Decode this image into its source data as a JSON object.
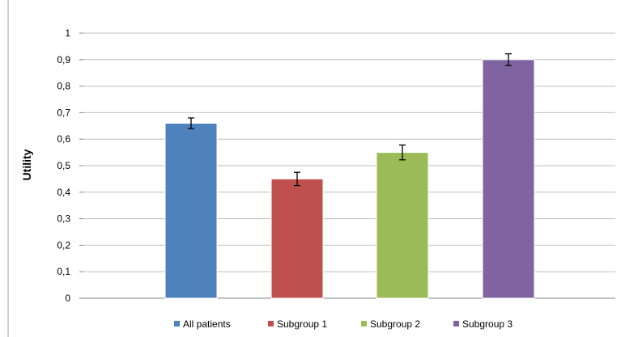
{
  "chart_data": {
    "type": "bar",
    "categories": [
      "All patients",
      "Subgroup 1",
      "Subgroup 2",
      "Subgroup 3"
    ],
    "series": [
      {
        "name": "All patients",
        "values": [
          0.66,
          null,
          null,
          null
        ],
        "error": 0.02
      },
      {
        "name": "Subgroup 1",
        "values": [
          null,
          0.45,
          null,
          null
        ],
        "error": 0.025
      },
      {
        "name": "Subgroup 2",
        "values": [
          null,
          null,
          0.55,
          null
        ],
        "error": 0.028
      },
      {
        "name": "Subgroup 3",
        "values": [
          null,
          null,
          null,
          0.9
        ],
        "error": 0.022
      }
    ],
    "values": [
      0.66,
      0.45,
      0.55,
      0.9
    ],
    "errors": [
      0.02,
      0.025,
      0.028,
      0.022
    ],
    "colors": [
      "#4F81BD",
      "#C0504D",
      "#9BBB59",
      "#8064A2"
    ],
    "title": "",
    "xlabel": "",
    "ylabel": "Utility",
    "ylim": [
      0,
      1
    ],
    "yticks": [
      0,
      0.1,
      0.2,
      0.3,
      0.4,
      0.5,
      0.6,
      0.7,
      0.8,
      0.9,
      1
    ],
    "ytick_labels": [
      "0",
      "0,1",
      "0,2",
      "0,3",
      "0,4",
      "0,5",
      "0,6",
      "0,7",
      "0,8",
      "0,9",
      "1"
    ],
    "grid": true,
    "legend": "bottom",
    "gridline_color": "#BFBFBF",
    "axis_color": "#868686"
  }
}
